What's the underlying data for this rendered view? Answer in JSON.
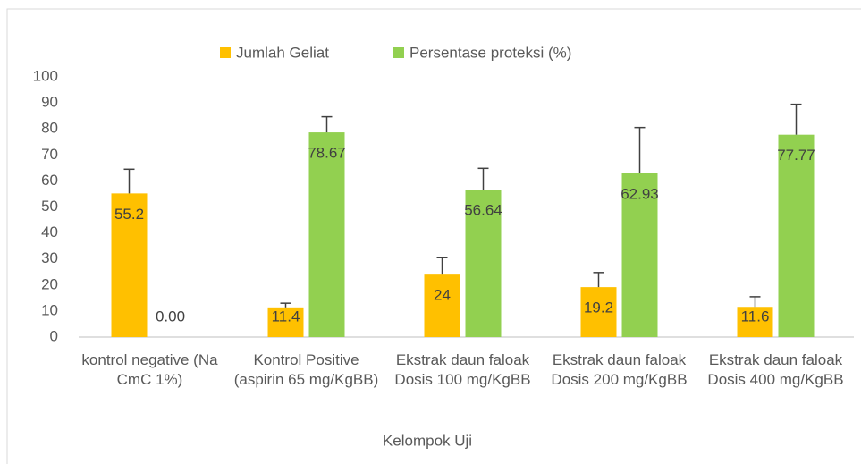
{
  "chart_data": {
    "type": "bar",
    "categories": [
      "kontrol negative (Na CmC 1%)",
      "Kontrol Positive (aspirin 65 mg/KgBB)",
      "Ekstrak daun faloak Dosis 100 mg/KgBB",
      "Ekstrak daun faloak Dosis 200 mg/KgBB",
      "Ekstrak daun faloak Dosis 400 mg/KgBB"
    ],
    "series": [
      {
        "name": "Jumlah Geliat",
        "color": "#ffc000",
        "values": [
          55.2,
          11.4,
          24,
          19.2,
          11.6
        ],
        "errors": [
          9.3,
          1.6,
          6.5,
          5.6,
          3.9
        ]
      },
      {
        "name": "Persentase proteksi (%)",
        "color": "#92d050",
        "values": [
          0,
          78.67,
          56.64,
          62.93,
          77.77
        ],
        "value_labels": [
          "0.00",
          "78.67",
          "56.64",
          "62.93",
          "77.77"
        ],
        "errors": [
          null,
          6,
          8.2,
          17.6,
          11.7
        ]
      }
    ],
    "x_label": "Kelompok Uji",
    "ylim": [
      0,
      100
    ],
    "yticks": [
      0,
      10,
      20,
      30,
      40,
      50,
      60,
      70,
      80,
      90,
      100
    ],
    "grid": false,
    "legend": "top"
  }
}
